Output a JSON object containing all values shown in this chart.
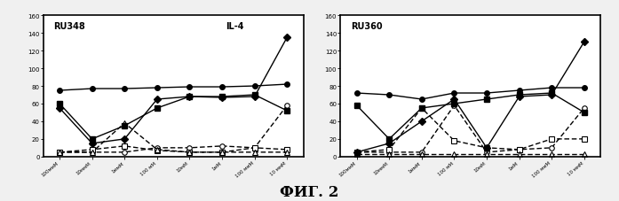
{
  "title_left": "RU348",
  "title_right": "RU360",
  "subtitle_left": "IL-4",
  "figure_title": "ФИГ. 2",
  "x_labels": [
    "100ммМ",
    "10ммМ",
    "1ммМ",
    "100 мМ",
    "10мМ",
    "1мМ",
    "100 ммМ",
    "10 ммМ"
  ],
  "ylim": [
    0,
    160
  ],
  "yticks": [
    0,
    20,
    40,
    60,
    80,
    100,
    120,
    140,
    160
  ],
  "left_series": {
    "solid_circle": [
      75,
      77,
      77,
      78,
      79,
      79,
      80,
      82
    ],
    "solid_square": [
      60,
      20,
      35,
      55,
      68,
      68,
      70,
      52
    ],
    "solid_diamond": [
      55,
      15,
      20,
      65,
      68,
      67,
      68,
      135
    ],
    "open_circle": [
      5,
      5,
      5,
      10,
      10,
      12,
      10,
      58
    ],
    "open_square": [
      5,
      8,
      12,
      7,
      5,
      5,
      10,
      8
    ],
    "open_triangle": [
      5,
      5,
      38,
      8,
      5,
      5,
      5,
      5
    ]
  },
  "right_series": {
    "solid_circle": [
      72,
      70,
      65,
      72,
      72,
      75,
      78,
      78
    ],
    "solid_square": [
      58,
      20,
      55,
      60,
      65,
      70,
      72,
      50
    ],
    "solid_diamond": [
      5,
      15,
      40,
      65,
      10,
      68,
      70,
      130
    ],
    "open_circle": [
      5,
      5,
      5,
      58,
      5,
      8,
      10,
      55
    ],
    "open_square": [
      5,
      8,
      55,
      18,
      10,
      8,
      20,
      20
    ],
    "open_triangle": [
      3,
      3,
      3,
      3,
      3,
      3,
      3,
      3
    ]
  },
  "bg_color": "#f0f0f0",
  "panel_bg": "#ffffff",
  "line_color": "#000000"
}
